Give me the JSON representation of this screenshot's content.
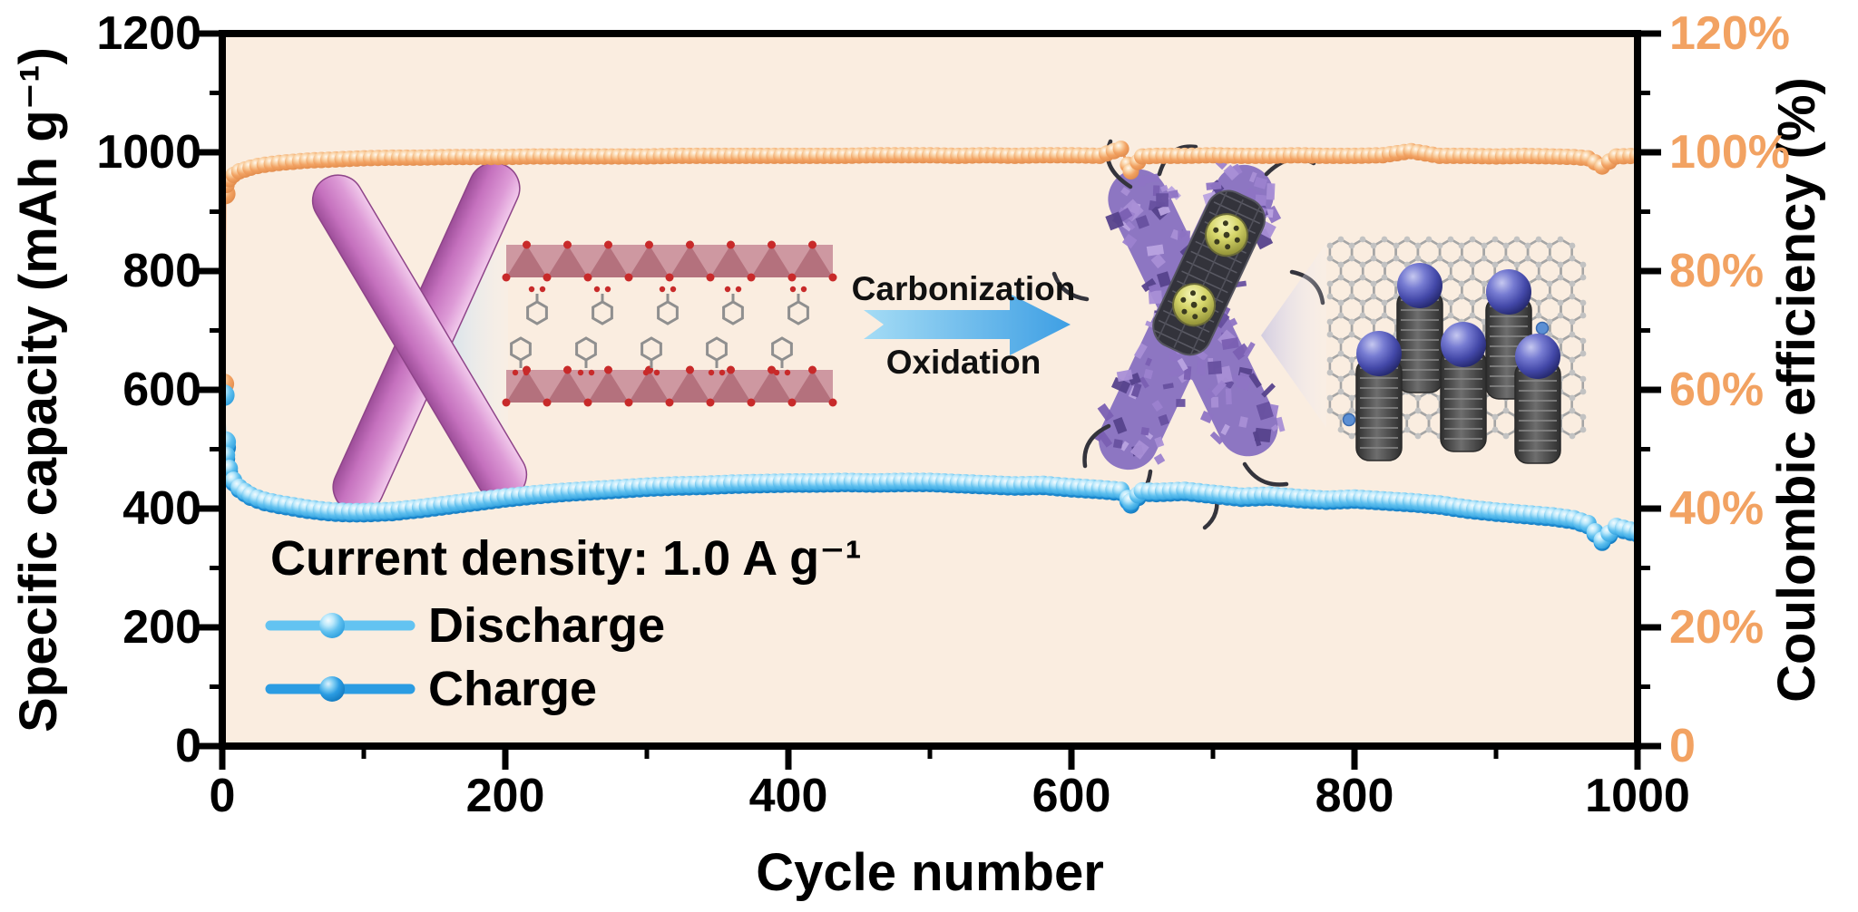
{
  "figure": {
    "plot_background": "#FAEDE0",
    "outer_background": "#FFFFFF",
    "axis_color": "#000000",
    "accent_orange": "#F2A262",
    "discharge_blue": "#63C3F1",
    "charge_blue": "#2B9CE2",
    "arrow_blue_light": "#9FD9F4",
    "arrow_blue_dark": "#3E9FE4"
  },
  "annotations": {
    "process_arrow_top": "Carbonization",
    "process_arrow_bottom": "Oxidation"
  },
  "chart_data": {
    "type": "line",
    "xlabel": "Cycle number",
    "ylabel_left": "Specific capacity (mAh g⁻¹)",
    "ylabel_right": "Coulombic efficiency (%)",
    "annotation": "Current density: 1.0 A g⁻¹",
    "x_range": [
      0,
      1000
    ],
    "y_left_range": [
      0,
      1200
    ],
    "y_right_range": [
      0,
      120
    ],
    "x_ticks": [
      0,
      200,
      400,
      600,
      800,
      1000
    ],
    "y_left_ticks": [
      0,
      200,
      400,
      600,
      800,
      1000,
      1200
    ],
    "y_right_tick_labels": [
      "0",
      "20%",
      "40%",
      "60%",
      "80%",
      "100%",
      "120%"
    ],
    "grid": false,
    "legend_position": "lower-left inside",
    "x": [
      1,
      2,
      3,
      5,
      8,
      12,
      16,
      20,
      25,
      30,
      40,
      50,
      60,
      70,
      80,
      90,
      100,
      120,
      140,
      160,
      180,
      200,
      220,
      240,
      260,
      280,
      300,
      320,
      340,
      360,
      380,
      400,
      420,
      440,
      460,
      480,
      500,
      520,
      540,
      560,
      580,
      600,
      620,
      635,
      642,
      650,
      660,
      680,
      700,
      720,
      740,
      760,
      780,
      800,
      820,
      840,
      860,
      880,
      900,
      920,
      940,
      955,
      965,
      975,
      985,
      1000
    ],
    "series": [
      {
        "name": "Discharge",
        "axis": "left",
        "unit": "mAh g-1",
        "color": "#63C3F1",
        "values": [
          591,
          512,
          490,
          468,
          448,
          436,
          429,
          423,
          418,
          414,
          409,
          405,
          401,
          398,
          396,
          395,
          395,
          397,
          402,
          408,
          414,
          420,
          425,
          429,
          432,
          435,
          438,
          440,
          441,
          443,
          444,
          445,
          445,
          446,
          445,
          446,
          446,
          444,
          442,
          440,
          441,
          437,
          434,
          431,
          412,
          430,
          429,
          431,
          426,
          421,
          423,
          419,
          416,
          418,
          415,
          412,
          408,
          401,
          396,
          392,
          388,
          383,
          375,
          347,
          370,
          361
        ]
      },
      {
        "name": "Charge",
        "axis": "left",
        "unit": "mAh g-1",
        "color": "#2B9CE2",
        "values": [
          512,
          503,
          484,
          462,
          443,
          432,
          425,
          419,
          414,
          410,
          405,
          401,
          397,
          394,
          392,
          391,
          391,
          393,
          398,
          404,
          410,
          416,
          421,
          425,
          428,
          431,
          434,
          436,
          437,
          439,
          440,
          441,
          441,
          442,
          441,
          442,
          442,
          440,
          438,
          436,
          437,
          433,
          430,
          427,
          406,
          426,
          425,
          427,
          422,
          417,
          419,
          415,
          412,
          414,
          411,
          408,
          404,
          397,
          392,
          388,
          384,
          379,
          371,
          343,
          366,
          357
        ]
      },
      {
        "name": "Coulombic efficiency",
        "axis": "right",
        "unit": "%",
        "color": "#F2A262",
        "values": [
          61,
          93,
          94.5,
          95.5,
          96.2,
          96.8,
          97.1,
          97.4,
          97.7,
          97.9,
          98.2,
          98.4,
          98.6,
          98.7,
          98.8,
          98.9,
          99.0,
          99.1,
          99.1,
          99.2,
          99.2,
          99.2,
          99.3,
          99.3,
          99.3,
          99.3,
          99.3,
          99.4,
          99.4,
          99.4,
          99.4,
          99.4,
          99.4,
          99.4,
          99.5,
          99.5,
          99.5,
          99.4,
          99.5,
          99.4,
          99.5,
          99.5,
          99.4,
          100.6,
          96.8,
          99.3,
          99.4,
          99.4,
          99.5,
          99.4,
          99.4,
          99.5,
          99.4,
          99.4,
          99.5,
          100.2,
          99.4,
          99.4,
          99.3,
          99.4,
          99.3,
          99.2,
          99.0,
          97.6,
          99.3,
          99.4
        ]
      }
    ],
    "insets": [
      "pink crossed nanorods (pristine MOF rods)",
      "layered MOF crystal structure with organic linkers",
      "purple carbon-coated crossed rods with fullerene-filled carbon nanotube",
      "graphene sheet with vertical carbon nanotubes capped by blue spheres"
    ]
  }
}
